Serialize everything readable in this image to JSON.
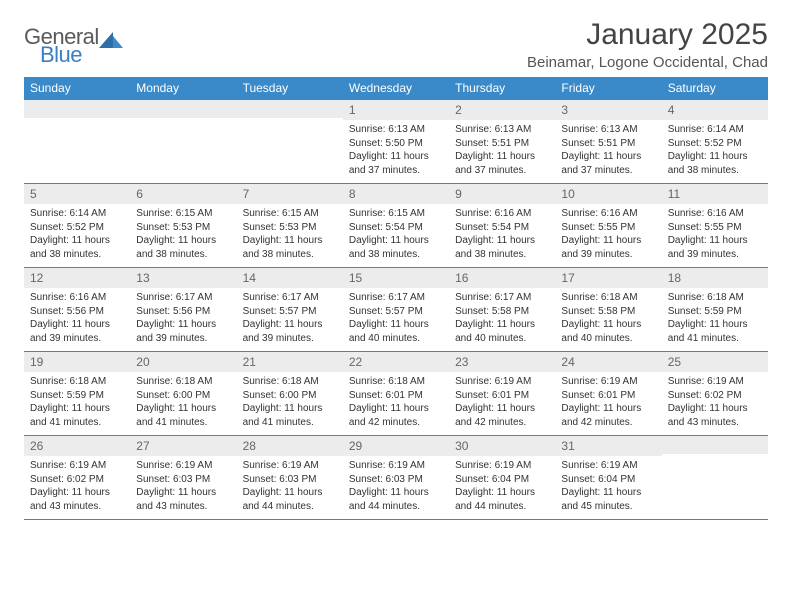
{
  "brand": {
    "part1": "General",
    "part2": "Blue",
    "text_color": "#5a5a5a",
    "accent_color": "#3a7fc4"
  },
  "title": "January 2025",
  "location": "Beinamar, Logone Occidental, Chad",
  "colors": {
    "header_bg": "#3a8ac9",
    "header_fg": "#ffffff",
    "daynum_bg": "#ececec",
    "daynum_fg": "#666666",
    "border": "#3a8ac9",
    "text": "#333333",
    "background": "#ffffff"
  },
  "typography": {
    "title_fontsize": 30,
    "location_fontsize": 15,
    "header_fontsize": 12,
    "daynum_fontsize": 12,
    "cell_fontsize": 10
  },
  "day_headers": [
    "Sunday",
    "Monday",
    "Tuesday",
    "Wednesday",
    "Thursday",
    "Friday",
    "Saturday"
  ],
  "weeks": [
    [
      {
        "n": "",
        "l": [
          "",
          "",
          "",
          ""
        ]
      },
      {
        "n": "",
        "l": [
          "",
          "",
          "",
          ""
        ]
      },
      {
        "n": "",
        "l": [
          "",
          "",
          "",
          ""
        ]
      },
      {
        "n": "1",
        "l": [
          "Sunrise: 6:13 AM",
          "Sunset: 5:50 PM",
          "Daylight: 11 hours",
          "and 37 minutes."
        ]
      },
      {
        "n": "2",
        "l": [
          "Sunrise: 6:13 AM",
          "Sunset: 5:51 PM",
          "Daylight: 11 hours",
          "and 37 minutes."
        ]
      },
      {
        "n": "3",
        "l": [
          "Sunrise: 6:13 AM",
          "Sunset: 5:51 PM",
          "Daylight: 11 hours",
          "and 37 minutes."
        ]
      },
      {
        "n": "4",
        "l": [
          "Sunrise: 6:14 AM",
          "Sunset: 5:52 PM",
          "Daylight: 11 hours",
          "and 38 minutes."
        ]
      }
    ],
    [
      {
        "n": "5",
        "l": [
          "Sunrise: 6:14 AM",
          "Sunset: 5:52 PM",
          "Daylight: 11 hours",
          "and 38 minutes."
        ]
      },
      {
        "n": "6",
        "l": [
          "Sunrise: 6:15 AM",
          "Sunset: 5:53 PM",
          "Daylight: 11 hours",
          "and 38 minutes."
        ]
      },
      {
        "n": "7",
        "l": [
          "Sunrise: 6:15 AM",
          "Sunset: 5:53 PM",
          "Daylight: 11 hours",
          "and 38 minutes."
        ]
      },
      {
        "n": "8",
        "l": [
          "Sunrise: 6:15 AM",
          "Sunset: 5:54 PM",
          "Daylight: 11 hours",
          "and 38 minutes."
        ]
      },
      {
        "n": "9",
        "l": [
          "Sunrise: 6:16 AM",
          "Sunset: 5:54 PM",
          "Daylight: 11 hours",
          "and 38 minutes."
        ]
      },
      {
        "n": "10",
        "l": [
          "Sunrise: 6:16 AM",
          "Sunset: 5:55 PM",
          "Daylight: 11 hours",
          "and 39 minutes."
        ]
      },
      {
        "n": "11",
        "l": [
          "Sunrise: 6:16 AM",
          "Sunset: 5:55 PM",
          "Daylight: 11 hours",
          "and 39 minutes."
        ]
      }
    ],
    [
      {
        "n": "12",
        "l": [
          "Sunrise: 6:16 AM",
          "Sunset: 5:56 PM",
          "Daylight: 11 hours",
          "and 39 minutes."
        ]
      },
      {
        "n": "13",
        "l": [
          "Sunrise: 6:17 AM",
          "Sunset: 5:56 PM",
          "Daylight: 11 hours",
          "and 39 minutes."
        ]
      },
      {
        "n": "14",
        "l": [
          "Sunrise: 6:17 AM",
          "Sunset: 5:57 PM",
          "Daylight: 11 hours",
          "and 39 minutes."
        ]
      },
      {
        "n": "15",
        "l": [
          "Sunrise: 6:17 AM",
          "Sunset: 5:57 PM",
          "Daylight: 11 hours",
          "and 40 minutes."
        ]
      },
      {
        "n": "16",
        "l": [
          "Sunrise: 6:17 AM",
          "Sunset: 5:58 PM",
          "Daylight: 11 hours",
          "and 40 minutes."
        ]
      },
      {
        "n": "17",
        "l": [
          "Sunrise: 6:18 AM",
          "Sunset: 5:58 PM",
          "Daylight: 11 hours",
          "and 40 minutes."
        ]
      },
      {
        "n": "18",
        "l": [
          "Sunrise: 6:18 AM",
          "Sunset: 5:59 PM",
          "Daylight: 11 hours",
          "and 41 minutes."
        ]
      }
    ],
    [
      {
        "n": "19",
        "l": [
          "Sunrise: 6:18 AM",
          "Sunset: 5:59 PM",
          "Daylight: 11 hours",
          "and 41 minutes."
        ]
      },
      {
        "n": "20",
        "l": [
          "Sunrise: 6:18 AM",
          "Sunset: 6:00 PM",
          "Daylight: 11 hours",
          "and 41 minutes."
        ]
      },
      {
        "n": "21",
        "l": [
          "Sunrise: 6:18 AM",
          "Sunset: 6:00 PM",
          "Daylight: 11 hours",
          "and 41 minutes."
        ]
      },
      {
        "n": "22",
        "l": [
          "Sunrise: 6:18 AM",
          "Sunset: 6:01 PM",
          "Daylight: 11 hours",
          "and 42 minutes."
        ]
      },
      {
        "n": "23",
        "l": [
          "Sunrise: 6:19 AM",
          "Sunset: 6:01 PM",
          "Daylight: 11 hours",
          "and 42 minutes."
        ]
      },
      {
        "n": "24",
        "l": [
          "Sunrise: 6:19 AM",
          "Sunset: 6:01 PM",
          "Daylight: 11 hours",
          "and 42 minutes."
        ]
      },
      {
        "n": "25",
        "l": [
          "Sunrise: 6:19 AM",
          "Sunset: 6:02 PM",
          "Daylight: 11 hours",
          "and 43 minutes."
        ]
      }
    ],
    [
      {
        "n": "26",
        "l": [
          "Sunrise: 6:19 AM",
          "Sunset: 6:02 PM",
          "Daylight: 11 hours",
          "and 43 minutes."
        ]
      },
      {
        "n": "27",
        "l": [
          "Sunrise: 6:19 AM",
          "Sunset: 6:03 PM",
          "Daylight: 11 hours",
          "and 43 minutes."
        ]
      },
      {
        "n": "28",
        "l": [
          "Sunrise: 6:19 AM",
          "Sunset: 6:03 PM",
          "Daylight: 11 hours",
          "and 44 minutes."
        ]
      },
      {
        "n": "29",
        "l": [
          "Sunrise: 6:19 AM",
          "Sunset: 6:03 PM",
          "Daylight: 11 hours",
          "and 44 minutes."
        ]
      },
      {
        "n": "30",
        "l": [
          "Sunrise: 6:19 AM",
          "Sunset: 6:04 PM",
          "Daylight: 11 hours",
          "and 44 minutes."
        ]
      },
      {
        "n": "31",
        "l": [
          "Sunrise: 6:19 AM",
          "Sunset: 6:04 PM",
          "Daylight: 11 hours",
          "and 45 minutes."
        ]
      },
      {
        "n": "",
        "l": [
          "",
          "",
          "",
          ""
        ]
      }
    ]
  ]
}
